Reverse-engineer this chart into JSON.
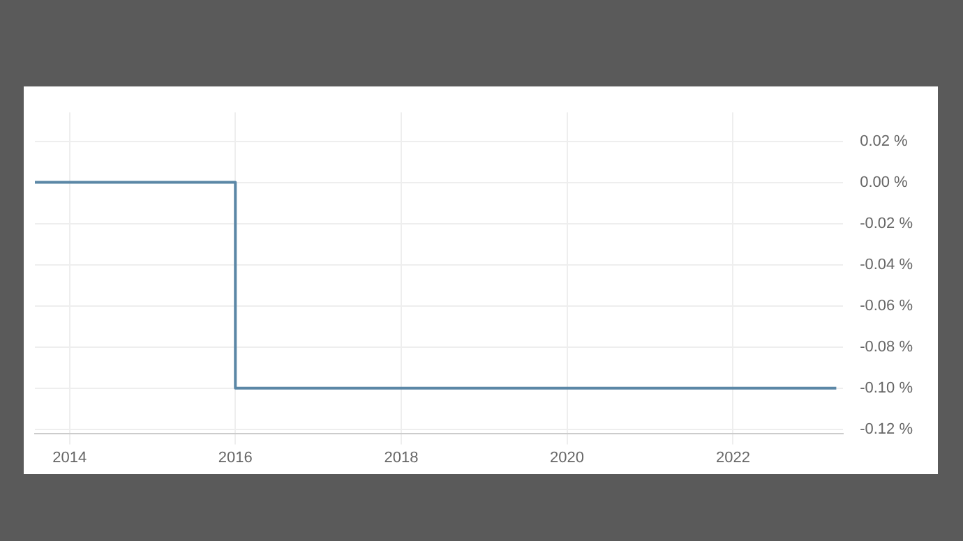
{
  "chart_data": {
    "type": "step",
    "x": [
      "2013-08",
      "2016-01",
      "2023-04"
    ],
    "values": [
      0,
      -0.1,
      -0.1
    ],
    "color": "#5b87a6",
    "xlim": [
      "2013-08",
      "2023-05"
    ],
    "xticks": [
      {
        "value": "2014",
        "label": "2014"
      },
      {
        "value": "2016",
        "label": "2016"
      },
      {
        "value": "2018",
        "label": "2018"
      },
      {
        "value": "2020",
        "label": "2020"
      },
      {
        "value": "2022",
        "label": "2022"
      }
    ],
    "ylim": [
      -0.122,
      0.034
    ],
    "yticks": [
      {
        "value": 0.02,
        "label": "0.02 %"
      },
      {
        "value": 0,
        "label": "0.00 %"
      },
      {
        "value": -0.02,
        "label": "-0.02 %"
      },
      {
        "value": -0.04,
        "label": "-0.04 %"
      },
      {
        "value": -0.06,
        "label": "-0.06 %"
      },
      {
        "value": -0.08,
        "label": "-0.08 %"
      },
      {
        "value": -0.1,
        "label": "-0.10 %"
      },
      {
        "value": -0.12,
        "label": "-0.12 %"
      }
    ],
    "grid": true,
    "legend": false,
    "marker": "none",
    "line_style": "solid"
  }
}
